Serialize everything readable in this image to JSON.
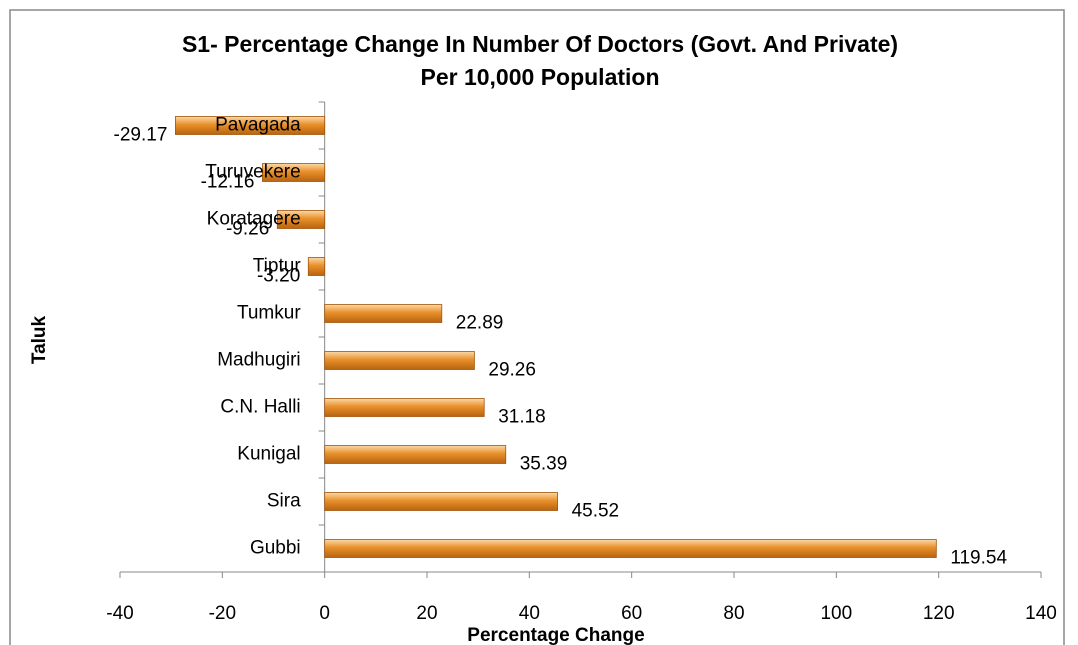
{
  "chart_data": {
    "type": "bar",
    "orientation": "horizontal",
    "title": "S1- Percentage Change In Number Of Doctors (Govt. And Private) Per 10,000 Population",
    "x_label": "Percentage Change",
    "y_label": "Taluk",
    "categories": [
      "Pavagada",
      "Turuvekere",
      "Koratagere",
      "Tiptur",
      "Tumkur",
      "Madhugiri",
      "C.N. Halli",
      "Kunigal",
      "Sira",
      "Gubbi"
    ],
    "values": [
      -29.17,
      -12.16,
      -9.26,
      -3.2,
      22.89,
      29.26,
      31.18,
      35.39,
      45.52,
      119.54
    ],
    "value_labels": [
      "-29.17",
      "-12.16",
      "-9.26",
      "-3.20",
      "22.89",
      "29.26",
      "31.18",
      "35.39",
      "45.52",
      "119.54"
    ],
    "color": "#e8902a",
    "xlim": [
      -40,
      140
    ],
    "xticks": [
      -40,
      -20,
      0,
      20,
      40,
      60,
      80,
      100,
      120,
      140
    ],
    "grid": false
  }
}
